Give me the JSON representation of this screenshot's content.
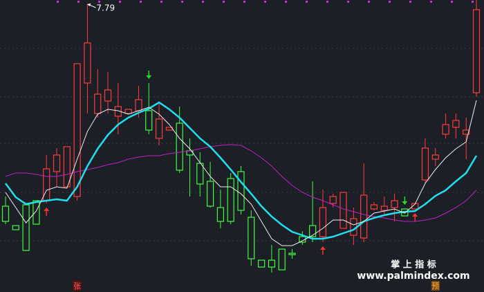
{
  "chart_data": {
    "type": "candlestick",
    "ylim": [
      5.8,
      7.82
    ],
    "up_color": "#ff3c3c",
    "down_color": "#3cff3c",
    "open": [
      6.33,
      6.19,
      6.34,
      6.37,
      6.37,
      6.58,
      6.47,
      6.4,
      7.22,
      7.0,
      7.09,
      6.98,
      7.0,
      7.02,
      7.02,
      6.82,
      6.88,
      6.93,
      6.73,
      6.64,
      6.51,
      6.32,
      6.53,
      6.58,
      6.25,
      5.94,
      5.94,
      6.02,
      5.99,
      6.11,
      6.19,
      6.11,
      6.35,
      6.17,
      6.12,
      6.1,
      6.31,
      6.3,
      6.32,
      6.31,
      6.31,
      6.52,
      6.67,
      6.85,
      6.9,
      6.85,
      7.15
    ],
    "high": [
      6.4,
      6.19,
      6.34,
      6.37,
      6.7,
      6.75,
      6.76,
      7.36,
      7.79,
      7.32,
      7.3,
      7.22,
      7.03,
      7.2,
      7.22,
      7.07,
      6.9,
      7.05,
      6.82,
      6.72,
      6.65,
      6.45,
      6.57,
      6.62,
      6.3,
      5.94,
      6.05,
      6.02,
      6.02,
      6.15,
      6.51,
      6.45,
      6.42,
      6.43,
      6.32,
      6.64,
      6.36,
      6.4,
      6.42,
      6.31,
      6.35,
      6.82,
      6.75,
      7.0,
      7.0,
      6.97,
      7.82
    ],
    "low": [
      6.2,
      6.16,
      6.01,
      6.2,
      6.35,
      6.47,
      6.47,
      6.37,
      7.0,
      6.97,
      7.0,
      6.85,
      7.0,
      6.97,
      6.85,
      6.77,
      6.88,
      6.57,
      6.4,
      6.4,
      6.32,
      6.17,
      6.2,
      6.27,
      5.9,
      5.89,
      5.85,
      5.87,
      5.95,
      6.05,
      6.07,
      6.07,
      6.32,
      6.17,
      6.05,
      6.07,
      6.3,
      6.26,
      6.22,
      6.26,
      6.31,
      6.5,
      6.62,
      6.82,
      6.82,
      6.67,
      7.12
    ],
    "close": [
      6.22,
      6.16,
      6.01,
      6.2,
      6.6,
      6.7,
      6.76,
      7.36,
      7.51,
      7.14,
      7.17,
      7.05,
      7.03,
      7.1,
      6.88,
      6.96,
      6.9,
      6.59,
      6.7,
      6.49,
      6.33,
      6.22,
      6.22,
      6.3,
      5.95,
      5.89,
      5.89,
      5.87,
      5.98,
      6.07,
      6.11,
      6.32,
      6.4,
      6.43,
      6.24,
      6.41,
      6.34,
      6.33,
      6.37,
      6.26,
      6.35,
      6.75,
      6.7,
      6.92,
      6.95,
      6.88,
      7.75
    ],
    "lines": [
      {
        "color": "#c020c8",
        "values": [
          6.545,
          6.57,
          6.57,
          6.56,
          6.545,
          6.545,
          6.56,
          6.58,
          6.595,
          6.61,
          6.63,
          6.645,
          6.67,
          6.685,
          6.695,
          6.695,
          6.71,
          6.72,
          6.73,
          6.745,
          6.76,
          6.77,
          6.775,
          6.77,
          6.73,
          6.68,
          6.62,
          6.545,
          6.48,
          6.43,
          6.395,
          6.37,
          6.34,
          6.31,
          6.29,
          6.27,
          6.255,
          6.245,
          6.23,
          6.22,
          6.22,
          6.23,
          6.245,
          6.28,
          6.32,
          6.37,
          6.445
        ]
      },
      {
        "color": "#20e0f0",
        "values": [
          6.495,
          6.395,
          6.345,
          6.36,
          6.37,
          6.38,
          6.37,
          6.47,
          6.62,
          6.745,
          6.845,
          6.92,
          6.97,
          7.005,
          7.035,
          7.08,
          7.03,
          6.97,
          6.895,
          6.82,
          6.76,
          6.68,
          6.595,
          6.505,
          6.42,
          6.33,
          6.255,
          6.195,
          6.145,
          6.12,
          6.095,
          6.095,
          6.11,
          6.135,
          6.16,
          6.22,
          6.245,
          6.265,
          6.28,
          6.29,
          6.295,
          6.345,
          6.405,
          6.445,
          6.51,
          6.57,
          6.695
        ]
      },
      {
        "color": "#f0f0f0",
        "values": [
          6.43,
          6.32,
          6.21,
          6.295,
          6.445,
          6.47,
          6.46,
          6.67,
          6.87,
          6.995,
          7.03,
          7.02,
          6.995,
          7.02,
          7.045,
          6.995,
          6.92,
          6.82,
          6.745,
          6.645,
          6.545,
          6.47,
          6.47,
          6.42,
          6.345,
          6.22,
          6.095,
          6.045,
          6.045,
          6.08,
          6.12,
          6.17,
          6.23,
          6.23,
          6.195,
          6.22,
          6.28,
          6.295,
          6.31,
          6.28,
          6.345,
          6.495,
          6.595,
          6.68,
          6.745,
          6.795,
          7.095
        ]
      }
    ],
    "buy_signals": [
      4,
      31,
      40
    ],
    "sell_signals": [
      14,
      39
    ],
    "markers": [
      {
        "index": 7,
        "label": "张"
      },
      {
        "index": 42,
        "label": "预"
      }
    ],
    "watermark": [
      "掌 上 指 标",
      "www.palmindex.com"
    ]
  }
}
